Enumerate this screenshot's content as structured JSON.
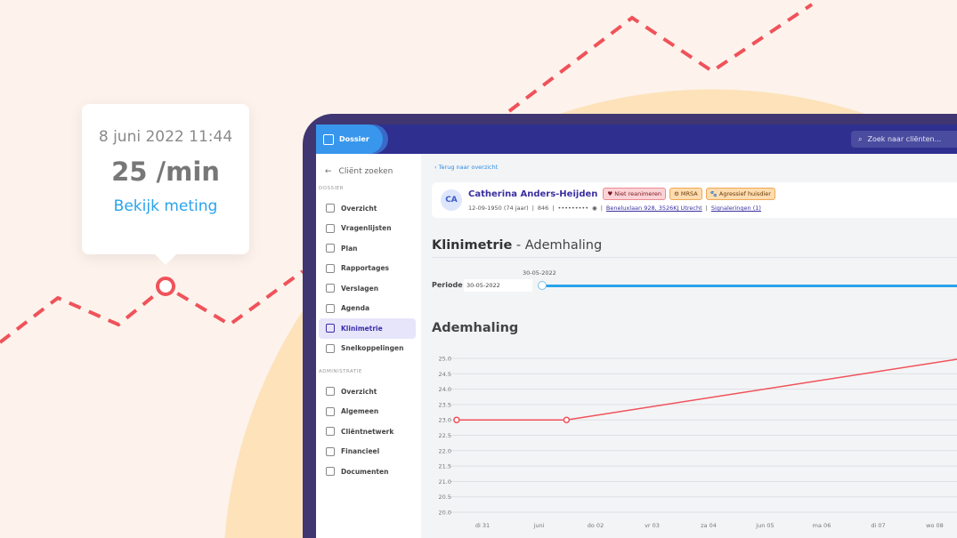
{
  "tooltip": {
    "date": "8 juni 2022 11:44",
    "value": "25 /min",
    "link": "Bekijk meting"
  },
  "header": {
    "tab": "Dossier",
    "search_placeholder": "Zoek naar cliënten..."
  },
  "sidebar": {
    "back": "Cliënt zoeken",
    "sections": [
      {
        "title": "DOSSIER",
        "items": [
          {
            "label": "Overzicht",
            "icon": "grid-icon"
          },
          {
            "label": "Vragenlijsten",
            "icon": "questionnaire-icon"
          },
          {
            "label": "Plan",
            "icon": "plan-icon"
          },
          {
            "label": "Rapportages",
            "icon": "report-icon"
          },
          {
            "label": "Verslagen",
            "icon": "document-icon"
          },
          {
            "label": "Agenda",
            "icon": "calendar-icon"
          },
          {
            "label": "Klinimetrie",
            "icon": "bar-chart-icon",
            "active": true
          },
          {
            "label": "Snelkoppelingen",
            "icon": "link-icon"
          }
        ]
      },
      {
        "title": "ADMINISTRATIE",
        "items": [
          {
            "label": "Overzicht",
            "icon": "grid-icon"
          },
          {
            "label": "Algemeen",
            "icon": "id-card-icon"
          },
          {
            "label": "Cliëntnetwerk",
            "icon": "people-icon"
          },
          {
            "label": "Financieel",
            "icon": "euro-icon"
          },
          {
            "label": "Documenten",
            "icon": "folder-icon"
          }
        ]
      }
    ]
  },
  "main": {
    "back_link": "Terug naar overzicht",
    "client": {
      "initials": "CA",
      "name": "Catherina Anders-Heijden",
      "badges": [
        "Niet reanimeren",
        "MRSA",
        "Agressief huisdier"
      ],
      "dob": "12-09-1950 (74 jaar)",
      "id": "846",
      "bsn": "•••••••••",
      "address": "Beneluxlaan 928, 3526KJ Utrecht",
      "signals": "Signaleringen (1)"
    },
    "title_bold": "Klinimetrie",
    "title_rest": " - Ademhaling",
    "periode_label": "Periode",
    "periode_value": "30-05-2022",
    "slider_label": "30-05-2022",
    "chart_title": "Ademhaling"
  },
  "colors": {
    "accent": "#2aa3ec",
    "line": "#f0525a",
    "header": "#2e2f8f",
    "active": "#3b2fa8"
  },
  "chart_data": {
    "type": "line",
    "title": "Ademhaling",
    "ylim": [
      20,
      25
    ],
    "yticks": [
      "25.0",
      "24.5",
      "24.0",
      "23.5",
      "23.0",
      "22.5",
      "22.0",
      "21.5",
      "21.0",
      "20.5",
      "20.0"
    ],
    "xticks": [
      "di 31",
      "juni",
      "do 02",
      "vr 03",
      "za 04",
      "jun 05",
      "ma 06",
      "di 07",
      "wo 08"
    ],
    "grid": true,
    "series": [
      {
        "points": [
          {
            "x": "2022-05-30 13:00",
            "y": 23.0
          },
          {
            "x": "2022-06-01 11:40",
            "y": 23.0
          },
          {
            "x": "2022-06-08 11:44",
            "y": 25.0
          }
        ]
      }
    ]
  }
}
